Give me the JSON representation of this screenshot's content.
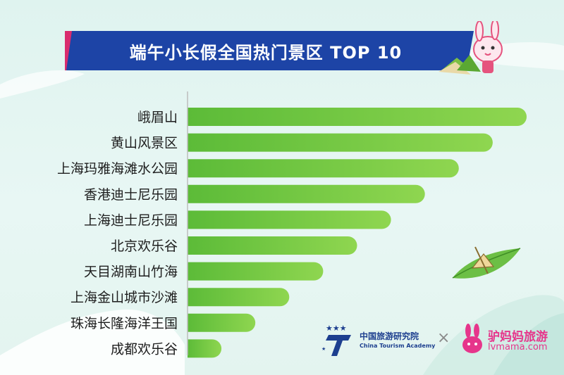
{
  "title": "端午小长假全国热门景区 TOP 10",
  "colors": {
    "bar_start": "#64c13c",
    "bar_end": "#8fd650",
    "title_bg": "#1d44a6",
    "title_accent": "#d92c6e",
    "label": "#1e1e1e",
    "axis": "#bdbdbd"
  },
  "chart_data": {
    "type": "bar",
    "orientation": "horizontal",
    "title": "端午小长假全国热门景区 TOP 10",
    "categories": [
      "峨眉山",
      "黄山风景区",
      "上海玛雅海滩水公园",
      "香港迪士尼乐园",
      "上海迪士尼乐园",
      "北京欢乐谷",
      "天目湖南山竹海",
      "上海金山城市沙滩",
      "珠海长隆海洋王国",
      "成都欢乐谷"
    ],
    "values": [
      10,
      9,
      8,
      7,
      6,
      5,
      4,
      3,
      2,
      1
    ],
    "xlabel": "",
    "ylabel": "",
    "value_labels_shown": false,
    "grid": false
  },
  "logos": {
    "academy_name": "中国旅游研究院",
    "academy_sub": "China Tourism Academy",
    "separator": "×",
    "lvmama_name": "驴妈妈旅游",
    "lvmama_url": "lvmama.com"
  },
  "decorations": [
    "zongzi-icon",
    "rabbit-mascot-icon",
    "zongzi-leaf-boat-icon",
    "mountain-silhouette"
  ]
}
